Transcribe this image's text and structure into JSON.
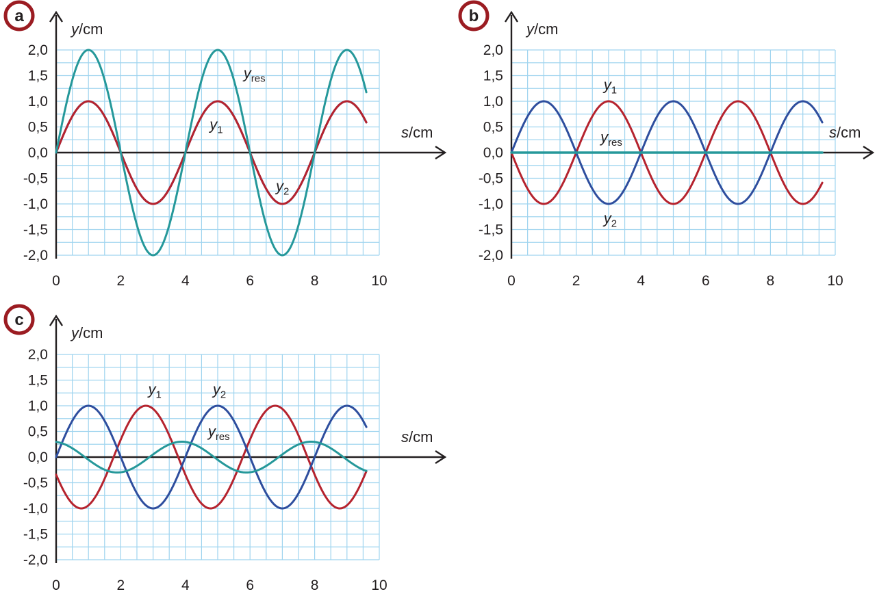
{
  "colors": {
    "grid": "#9fd4ef",
    "axis": "#231f20",
    "y1": "#b5232e",
    "y2": "#2e4e9e",
    "yres": "#25989a",
    "badge_ring": "#9b1c22"
  },
  "chart_data": [
    {
      "panel": "a",
      "type": "line",
      "xlabel_var": "s",
      "xlabel_unit": "/cm",
      "ylabel_var": "y",
      "ylabel_unit": "/cm",
      "xlim": [
        0,
        10
      ],
      "ylim": [
        -2.0,
        2.0
      ],
      "xticks": [
        "0",
        "2",
        "4",
        "6",
        "8",
        "10"
      ],
      "yticks": [
        "2,0",
        "1,5",
        "1,0",
        "0,5",
        "0,0",
        "-0,5",
        "-1,0",
        "-1,5",
        "-2,0"
      ],
      "x_end": 9.6,
      "series": [
        {
          "name": "y1",
          "color_key": "y2",
          "amplitude": 1.0,
          "wavelength": 4,
          "phase_deg": 0
        },
        {
          "name": "y2",
          "color_key": "y1",
          "amplitude": 1.0,
          "wavelength": 4,
          "phase_deg": 0
        },
        {
          "name": "yres",
          "color_key": "yres",
          "amplitude": 2.0,
          "wavelength": 4,
          "phase_deg": 0
        }
      ],
      "labels": [
        {
          "base": "y",
          "sub": "res",
          "x": 5.8,
          "y": 1.45
        },
        {
          "base": "y",
          "sub": "1",
          "x": 4.75,
          "y": 0.45
        },
        {
          "base": "y",
          "sub": "2",
          "x": 6.8,
          "y": -0.75
        }
      ]
    },
    {
      "panel": "b",
      "type": "line",
      "xlabel_var": "s",
      "xlabel_unit": "/cm",
      "ylabel_var": "y",
      "ylabel_unit": "/cm",
      "xlim": [
        0,
        10
      ],
      "ylim": [
        -2.0,
        2.0
      ],
      "xticks": [
        "0",
        "2",
        "4",
        "6",
        "8",
        "10"
      ],
      "yticks": [
        "2,0",
        "1,5",
        "1,0",
        "0,5",
        "0,0",
        "-0,5",
        "-1,0",
        "-1,5",
        "-2,0"
      ],
      "x_end": 9.6,
      "series": [
        {
          "name": "y1",
          "color_key": "y1",
          "amplitude": 1.0,
          "wavelength": 4,
          "phase_deg": 180
        },
        {
          "name": "y2",
          "color_key": "y2",
          "amplitude": 1.0,
          "wavelength": 4,
          "phase_deg": 0
        },
        {
          "name": "yres",
          "color_key": "yres",
          "amplitude": 0.0,
          "wavelength": 4,
          "phase_deg": 0
        }
      ],
      "labels": [
        {
          "base": "y",
          "sub": "1",
          "x": 2.85,
          "y": 1.22
        },
        {
          "base": "y",
          "sub": "res",
          "x": 2.75,
          "y": 0.2
        },
        {
          "base": "y",
          "sub": "2",
          "x": 2.85,
          "y": -1.38
        }
      ]
    },
    {
      "panel": "c",
      "type": "line",
      "xlabel_var": "s",
      "xlabel_unit": "/cm",
      "ylabel_var": "y",
      "ylabel_unit": "/cm",
      "xlim": [
        0,
        10
      ],
      "ylim": [
        -2.0,
        2.0
      ],
      "xticks": [
        "0",
        "2",
        "4",
        "6",
        "8",
        "10"
      ],
      "yticks": [
        "2,0",
        "1,5",
        "1,0",
        "0,5",
        "0,0",
        "-0,5",
        "-1,0",
        "-1,5",
        "-2,0"
      ],
      "x_end": 9.6,
      "series": [
        {
          "name": "y1",
          "color_key": "y1",
          "amplitude": 1.0,
          "wavelength": 4,
          "phase_deg": 200
        },
        {
          "name": "y2",
          "color_key": "y2",
          "amplitude": 1.0,
          "wavelength": 4,
          "phase_deg": 0
        },
        {
          "name": "yres",
          "color_key": "yres",
          "amplitude": 0.3,
          "wavelength": 4,
          "phase_deg": 100
        }
      ],
      "labels": [
        {
          "base": "y",
          "sub": "1",
          "x": 2.85,
          "y": 1.22
        },
        {
          "base": "y",
          "sub": "2",
          "x": 4.85,
          "y": 1.22
        },
        {
          "base": "y",
          "sub": "res",
          "x": 4.7,
          "y": 0.4
        }
      ]
    }
  ]
}
